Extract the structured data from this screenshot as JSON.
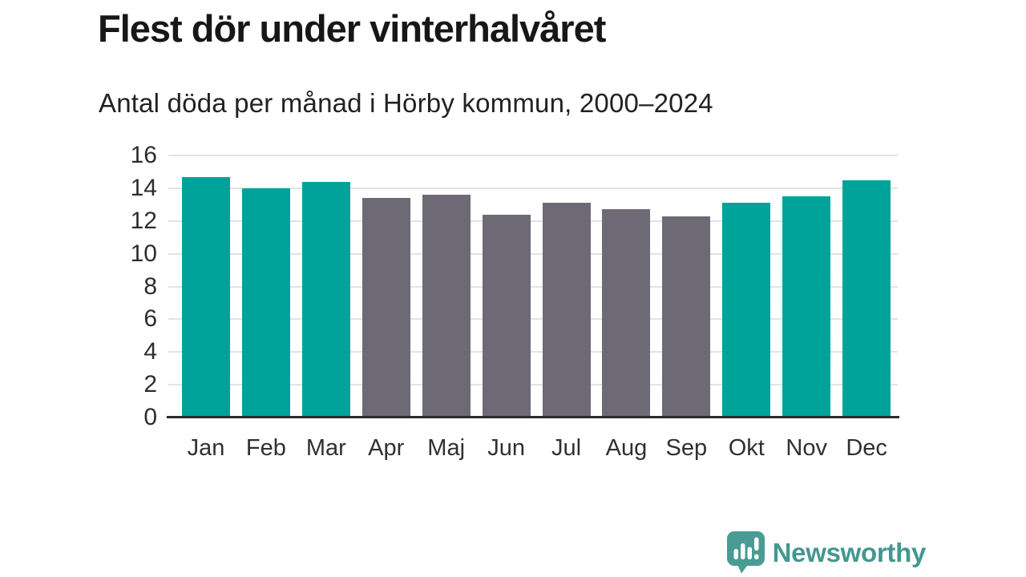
{
  "header": {
    "title": "Flest dör under vinterhalvåret",
    "subtitle": "Antal döda per månad i Hörby kommun, 2000–2024"
  },
  "footer": {
    "brand": "Newsworthy",
    "brand_icon": "bar-chart-speech-bubble-icon"
  },
  "colors": {
    "highlight": "#00a39a",
    "muted": "#6d6a75",
    "grid": "#e3e3e3",
    "axis": "#2b2b2b",
    "logo": "#489c93",
    "text": "#2d2d2d"
  },
  "chart_data": {
    "type": "bar",
    "title": "Flest dör under vinterhalvåret",
    "subtitle": "Antal döda per månad i Hörby kommun, 2000–2024",
    "categories": [
      "Jan",
      "Feb",
      "Mar",
      "Apr",
      "Maj",
      "Jun",
      "Jul",
      "Aug",
      "Sep",
      "Okt",
      "Nov",
      "Dec"
    ],
    "values": [
      14.7,
      14.0,
      14.4,
      13.4,
      13.6,
      12.4,
      13.1,
      12.7,
      12.3,
      13.1,
      13.5,
      14.5
    ],
    "bar_color_keys": [
      "highlight",
      "highlight",
      "highlight",
      "muted",
      "muted",
      "muted",
      "muted",
      "muted",
      "muted",
      "highlight",
      "highlight",
      "highlight"
    ],
    "highlight_meaning": "winter half-year months (Okt–Mar)",
    "xlabel": "",
    "ylabel": "",
    "ylim": [
      0,
      16
    ],
    "yticks": [
      0,
      2,
      4,
      6,
      8,
      10,
      12,
      14,
      16
    ],
    "grid": "horizontal",
    "legend": "none"
  }
}
